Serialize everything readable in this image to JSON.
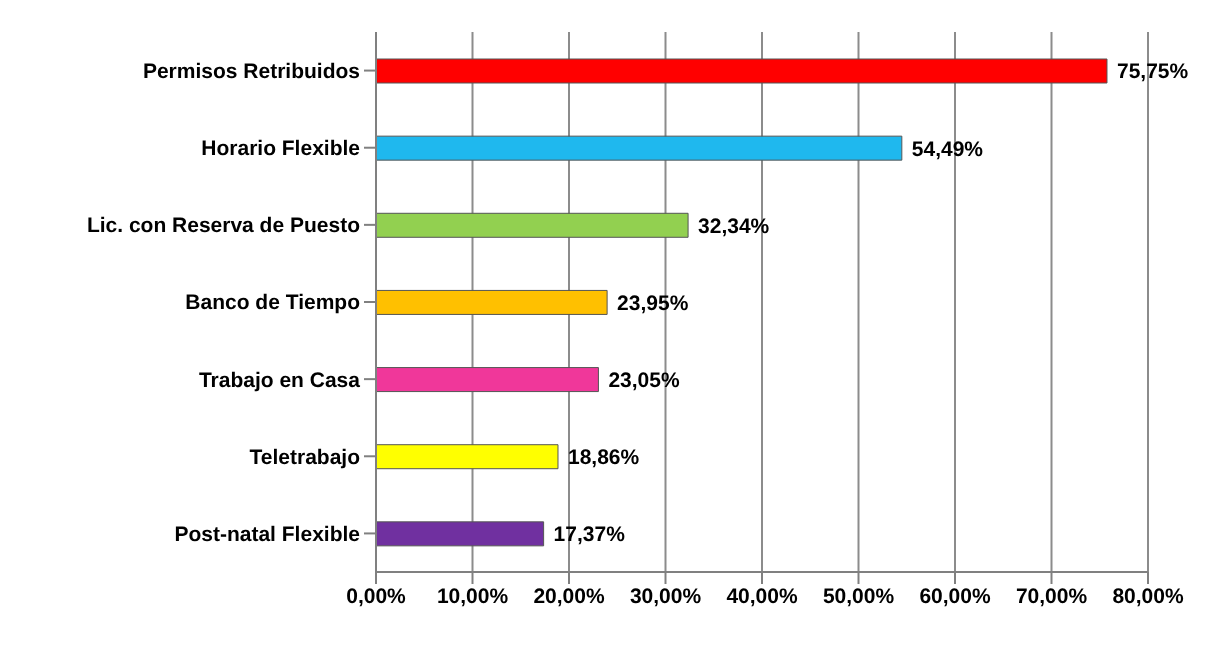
{
  "chart_data": {
    "type": "bar",
    "orientation": "horizontal",
    "categories": [
      "Permisos Retribuidos",
      "Horario Flexible",
      "Lic. con Reserva de Puesto",
      "Banco de Tiempo",
      "Trabajo en Casa",
      "Teletrabajo",
      "Post-natal Flexible"
    ],
    "values": [
      75.75,
      54.49,
      32.34,
      23.95,
      23.05,
      18.86,
      17.37
    ],
    "colors": [
      "#ff0000",
      "#1fb8ee",
      "#92d050",
      "#ffc000",
      "#f0379a",
      "#ffff00",
      "#7030a0"
    ],
    "value_labels": [
      "75,75%",
      "54,49%",
      "32,34%",
      "23,95%",
      "23,05%",
      "18,86%",
      "17,37%"
    ],
    "xlim": [
      0,
      80
    ],
    "xticks": [
      {
        "value": 0,
        "label": "0,00%"
      },
      {
        "value": 10,
        "label": "10,00%"
      },
      {
        "value": 20,
        "label": "20,00%"
      },
      {
        "value": 30,
        "label": "30,00%"
      },
      {
        "value": 40,
        "label": "40,00%"
      },
      {
        "value": 50,
        "label": "50,00%"
      },
      {
        "value": 60,
        "label": "60,00%"
      },
      {
        "value": 70,
        "label": "70,00%"
      },
      {
        "value": 80,
        "label": "80,00%"
      }
    ],
    "grid": "x"
  }
}
